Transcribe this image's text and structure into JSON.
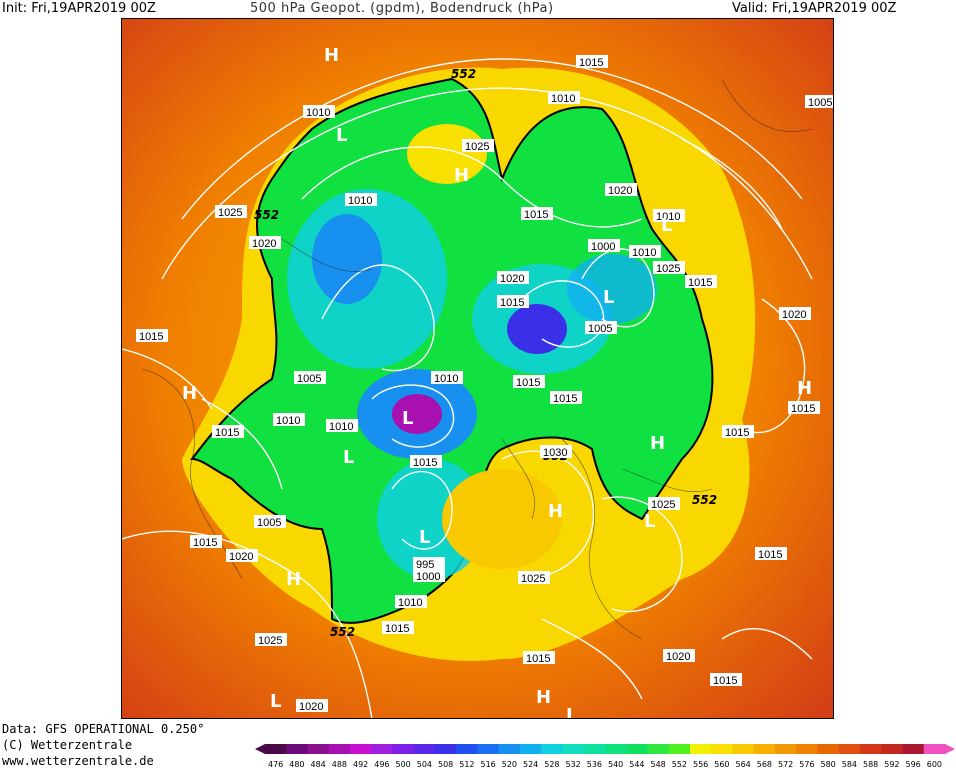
{
  "header": {
    "init": "Init: Fri,19APR2019 00Z",
    "title": "500 hPa Geopot. (gpdm), Bodendruck (hPa)",
    "valid": "Valid: Fri,19APR2019 00Z"
  },
  "footer": {
    "source": "Data: GFS OPERATIONAL 0.250°",
    "copyright": "(C) Wetterzentrale",
    "website": "www.wetterzentrale.de"
  },
  "colorbar": {
    "ticks": [
      476,
      480,
      484,
      488,
      492,
      496,
      500,
      504,
      508,
      512,
      516,
      520,
      524,
      528,
      532,
      536,
      540,
      544,
      548,
      552,
      556,
      560,
      564,
      568,
      572,
      576,
      580,
      584,
      588,
      592,
      596,
      600
    ],
    "colors": [
      "#4a0a4a",
      "#6a0a7a",
      "#8a1090",
      "#a810b0",
      "#c810d0",
      "#a020e0",
      "#7a20e8",
      "#5a28e8",
      "#3a30e8",
      "#2050f0",
      "#1870f0",
      "#1890f0",
      "#10b0f0",
      "#10d0e0",
      "#10e0c0",
      "#10e0a0",
      "#10e080",
      "#10e060",
      "#30e840",
      "#50f020",
      "#f0f000",
      "#f8e000",
      "#f8c800",
      "#f8b000",
      "#f09800",
      "#f08000",
      "#e86800",
      "#e05010",
      "#d03818",
      "#c02820",
      "#a81830",
      "#f050c0"
    ]
  },
  "map": {
    "contour_552_label": "552",
    "pressure_labels": [
      "1005",
      "1010",
      "1015",
      "1020",
      "1025",
      "1030",
      "995",
      "1000",
      "1005",
      "1010",
      "1015",
      "1020",
      "1025"
    ],
    "centers": [
      {
        "type": "H"
      },
      {
        "type": "H"
      },
      {
        "type": "H"
      },
      {
        "type": "H"
      },
      {
        "type": "H"
      },
      {
        "type": "H"
      },
      {
        "type": "H"
      },
      {
        "type": "H"
      },
      {
        "type": "L"
      },
      {
        "type": "L"
      },
      {
        "type": "L"
      },
      {
        "type": "L"
      },
      {
        "type": "L"
      },
      {
        "type": "L"
      },
      {
        "type": "L"
      },
      {
        "type": "L"
      },
      {
        "type": "L"
      }
    ]
  }
}
